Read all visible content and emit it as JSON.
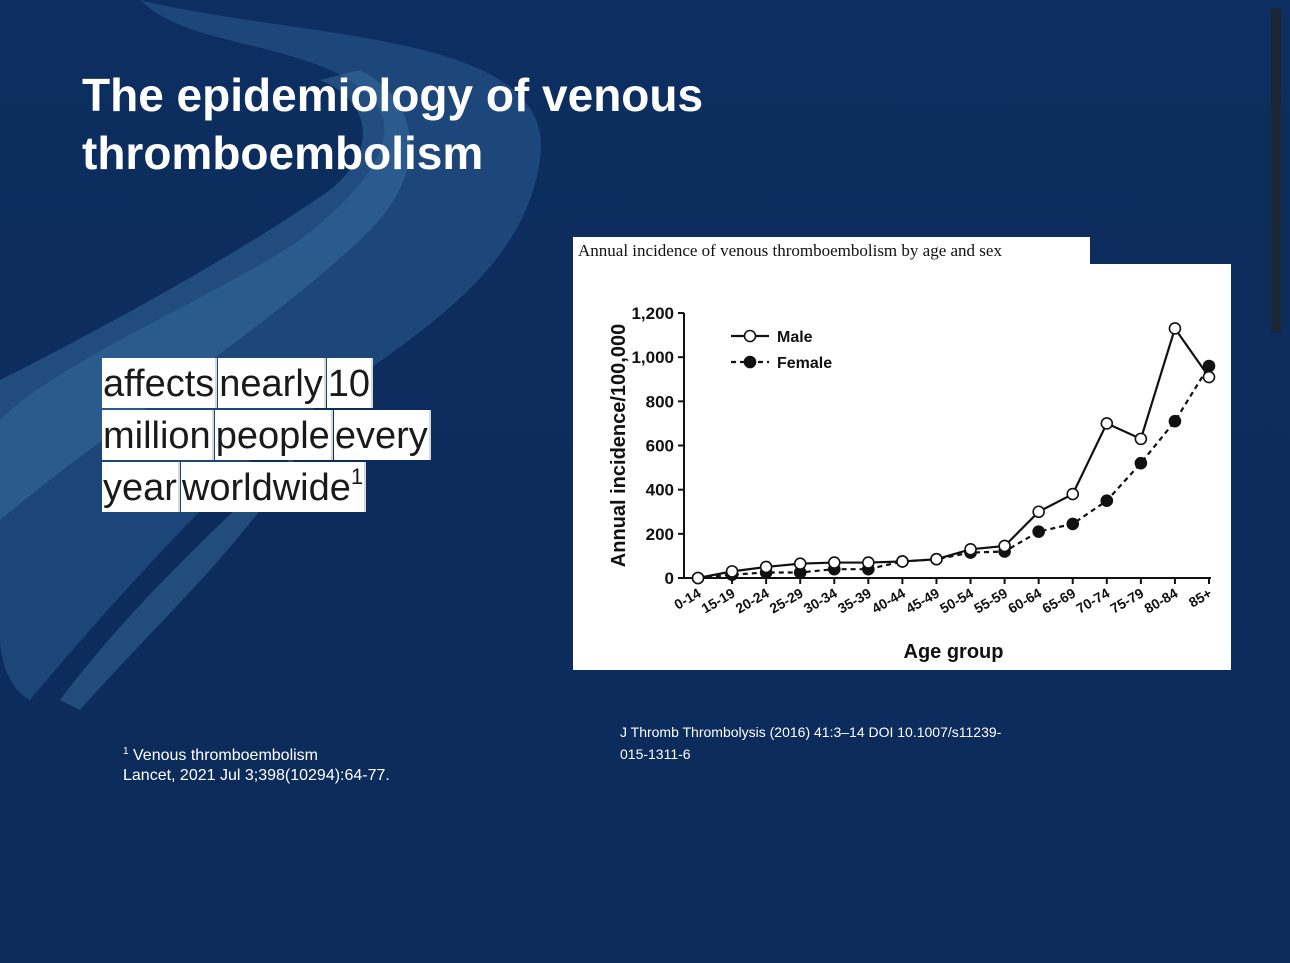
{
  "slide": {
    "title_line1": "The epidemiology of venous",
    "title_line2": "thromboembolism",
    "highlight_lines": [
      [
        "affects",
        "nearly",
        "10"
      ],
      [
        "million",
        "people",
        "every"
      ],
      [
        "year",
        "worldwide"
      ]
    ],
    "highlight_superscript": "1",
    "ref_left": {
      "superscript": "1",
      "line1": "Venous thromboembolism",
      "line2": "Lancet, 2021 Jul 3;398(10294):64-77."
    },
    "ref_right": {
      "line1": "J Thromb Thrombolysis (2016) 41:3–14 DOI 10.1007/s11239-",
      "line2": "015-1311-6"
    },
    "colors": {
      "background": "#0c2d5e",
      "text": "#ffffff",
      "highlight": "#ffffff"
    }
  },
  "chart_data": {
    "type": "line",
    "title": "Annual incidence of venous thromboembolism by age and sex",
    "xlabel": "Age group",
    "ylabel": "Annual incidence/100,000",
    "ylim": [
      0,
      1200
    ],
    "yticks": [
      "0",
      "200",
      "400",
      "600",
      "800",
      "1,000",
      "1,200"
    ],
    "ytick_values": [
      0,
      200,
      400,
      600,
      800,
      1000,
      1200
    ],
    "categories": [
      "0-14",
      "15-19",
      "20-24",
      "25-29",
      "30-34",
      "35-39",
      "40-44",
      "45-49",
      "50-54",
      "55-59",
      "60-64",
      "65-69",
      "70-74",
      "75-79",
      "80-84",
      "85+"
    ],
    "series": [
      {
        "name": "Male",
        "marker": "open-circle",
        "line": "solid",
        "values": [
          0,
          30,
          50,
          65,
          70,
          70,
          75,
          85,
          130,
          145,
          300,
          380,
          700,
          630,
          1130,
          910
        ]
      },
      {
        "name": "Female",
        "marker": "filled-circle",
        "line": "dashed",
        "values": [
          0,
          15,
          25,
          25,
          40,
          40,
          75,
          85,
          115,
          120,
          210,
          245,
          350,
          520,
          710,
          960
        ]
      }
    ],
    "legend_position": "top-left",
    "grid": false
  }
}
